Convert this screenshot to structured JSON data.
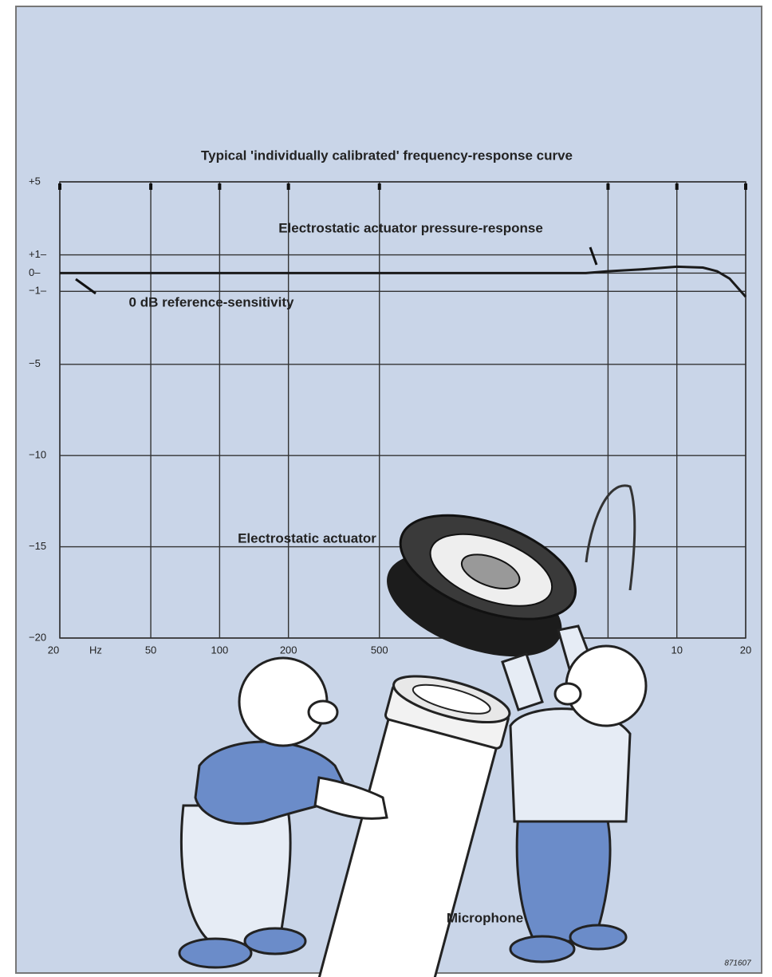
{
  "chart_data": {
    "type": "line",
    "title": "Typical 'individually calibrated' frequency-response curve",
    "x": [
      20,
      100,
      1000,
      4000,
      5000,
      7000,
      10000,
      13000,
      15000,
      17000,
      20000
    ],
    "values": [
      0,
      0,
      0,
      0,
      0.1,
      0.2,
      0.35,
      0.3,
      0.1,
      -0.3,
      -1.3
    ],
    "color": "#1a1a1a",
    "xscale": "log",
    "xlim": [
      20,
      20000
    ],
    "xticks": [
      20,
      50,
      100,
      200,
      500,
      {
        "value": 5000,
        "label": "5"
      },
      {
        "value": 10000,
        "label": "10"
      },
      {
        "value": 20000,
        "label": "20"
      }
    ],
    "x_unit": "Hz",
    "ylim": [
      -20,
      5
    ],
    "yticks": [
      {
        "value": 5,
        "label": "+5"
      },
      {
        "value": 1,
        "label": "+1–"
      },
      {
        "value": 0,
        "label": "0–"
      },
      {
        "value": -1,
        "label": "−1–"
      },
      {
        "value": -5,
        "label": "−5"
      },
      {
        "value": -10,
        "label": "−10"
      },
      {
        "value": -15,
        "label": "−15"
      },
      {
        "value": -20,
        "label": "−20"
      }
    ],
    "grid": true,
    "annotations": [
      "Electrostatic actuator pressure-response",
      "0 dB reference-sensitivity",
      "Electrostatic actuator",
      "Microphone",
      "871607"
    ]
  }
}
